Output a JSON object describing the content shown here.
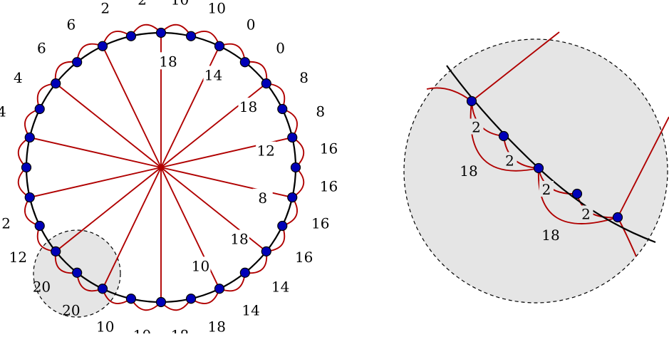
{
  "colors": {
    "edge": "#b00000",
    "vertex": "#0000b8",
    "ring": "#000000",
    "zoom_fill": "#e5e5e5"
  },
  "left": {
    "arc_labels": [
      "10",
      "10",
      "0",
      "0",
      "8",
      "8",
      "16",
      "16",
      "16",
      "16",
      "14",
      "14",
      "18",
      "18",
      "10",
      "10",
      "20",
      "20",
      "12",
      "12",
      "4",
      "4",
      "4",
      "4",
      "6",
      "6",
      "2",
      "2"
    ],
    "spoke_labels": [
      "18",
      "14",
      "18",
      "12",
      "8",
      "18",
      "10"
    ]
  },
  "right": {
    "arc_labels": [
      "2",
      "2",
      "2",
      "2"
    ],
    "long_arc_labels": [
      "18",
      "18"
    ]
  }
}
